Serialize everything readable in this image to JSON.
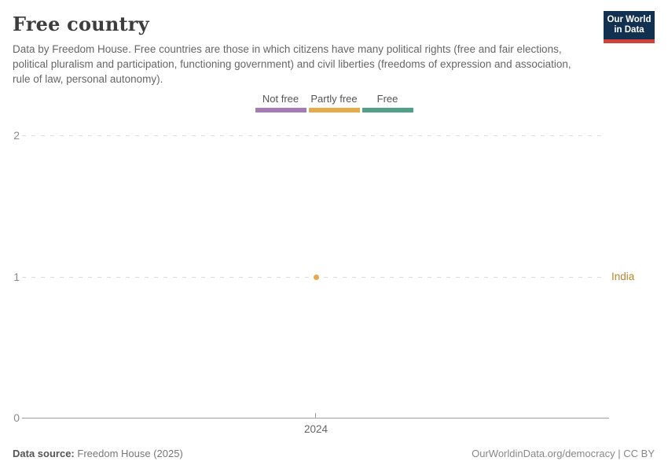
{
  "header": {
    "title": "Free country",
    "subtitle": "Data by Freedom House. Free countries are those in which citizens have many political rights (free and fair elections, political pluralism and participation, functioning government) and civil liberties (freedoms of expression and association, rule of law, personal autonomy).",
    "logo": {
      "line1": "Our World",
      "line2": "in Data",
      "bg_color": "#12304f",
      "accent_color": "#cf423b"
    }
  },
  "legend": {
    "items": [
      {
        "label": "Not free",
        "color": "#a77cb4"
      },
      {
        "label": "Partly free",
        "color": "#e6ac4b"
      },
      {
        "label": "Free",
        "color": "#51a08a"
      }
    ]
  },
  "chart_data": {
    "type": "scatter",
    "title": "Free country",
    "x": [
      2024
    ],
    "series": [
      {
        "name": "India",
        "values": [
          1
        ],
        "category": "Partly free",
        "point_color": "#e2a94f",
        "label_color": "#b9862c"
      }
    ],
    "ylim": [
      0,
      2
    ],
    "yticks": [
      0,
      1,
      2
    ],
    "ytick_labels": [
      "2",
      "1",
      "0"
    ],
    "xtick_label": "2024",
    "grid": "horizontal-dashed",
    "legend_position": "top-center"
  },
  "footer": {
    "source_label": "Data source:",
    "source_value": "Freedom House (2025)",
    "rights": "OurWorldinData.org/democracy | CC BY"
  }
}
